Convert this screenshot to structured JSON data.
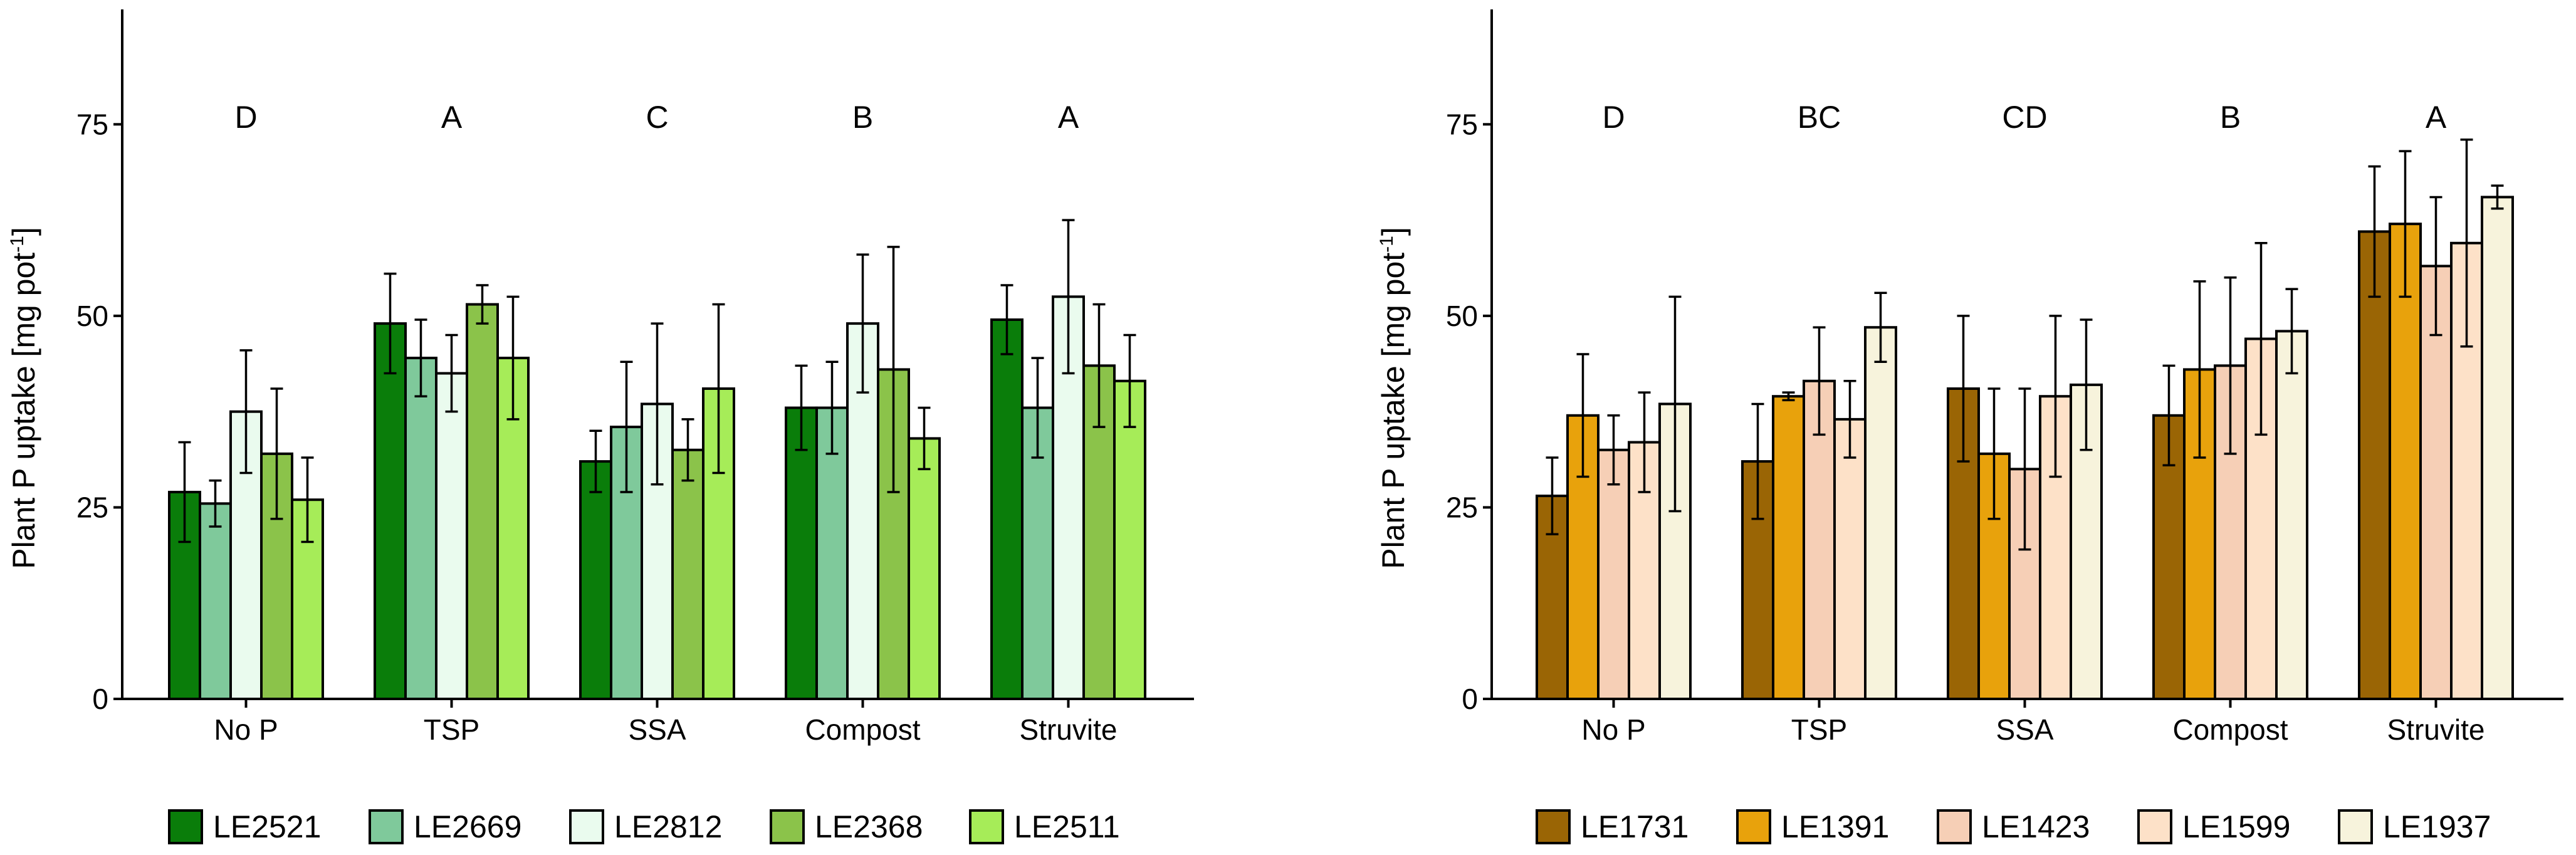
{
  "chart_data": [
    {
      "type": "bar",
      "title": "",
      "xlabel": "",
      "ylabel": "Plant P uptake [mg pot",
      "ylabel_sup": "-1",
      "ylabel_end": "]",
      "ylim": [
        0,
        90
      ],
      "yticks": [
        0,
        25,
        50,
        75
      ],
      "grid": false,
      "categories": [
        "No P",
        "TSP",
        "SSA",
        "Compost",
        "Struvite"
      ],
      "letters": [
        "D",
        "A",
        "C",
        "B",
        "A"
      ],
      "letter_y": 76,
      "legend_position": "bottom",
      "series": [
        {
          "name": "LE2521",
          "color": "#0a7d0a",
          "values": [
            27,
            49,
            31,
            38,
            49.5
          ],
          "errors": [
            6.5,
            6.5,
            4,
            5.5,
            4.5
          ]
        },
        {
          "name": "LE2669",
          "color": "#7fc99b",
          "values": [
            25.5,
            44.5,
            35.5,
            38,
            38
          ],
          "errors": [
            3,
            5,
            8.5,
            6,
            6.5
          ]
        },
        {
          "name": "LE2812",
          "color": "#eafbee",
          "values": [
            37.5,
            42.5,
            38.5,
            49,
            52.5
          ],
          "errors": [
            8,
            5,
            10.5,
            9,
            10
          ]
        },
        {
          "name": "LE2368",
          "color": "#8bc34a",
          "values": [
            32,
            51.5,
            32.5,
            43,
            43.5
          ],
          "errors": [
            8.5,
            2.5,
            4,
            16,
            8
          ]
        },
        {
          "name": "LE2511",
          "color": "#a6ec58",
          "values": [
            26,
            44.5,
            40.5,
            34,
            41.5
          ],
          "errors": [
            5.5,
            8,
            11,
            4,
            6
          ]
        }
      ]
    },
    {
      "type": "bar",
      "title": "",
      "xlabel": "",
      "ylabel": "Plant P uptake [mg pot",
      "ylabel_sup": "-1",
      "ylabel_end": "]",
      "ylim": [
        0,
        90
      ],
      "yticks": [
        0,
        25,
        50,
        75
      ],
      "grid": false,
      "categories": [
        "No P",
        "TSP",
        "SSA",
        "Compost",
        "Struvite"
      ],
      "letters": [
        "D",
        "BC",
        "CD",
        "B",
        "A"
      ],
      "letter_y": 76,
      "legend_position": "bottom",
      "series": [
        {
          "name": "LE1731",
          "color": "#9a6505",
          "values": [
            26.5,
            31,
            40.5,
            37,
            61
          ],
          "errors": [
            5,
            7.5,
            9.5,
            6.5,
            8.5
          ]
        },
        {
          "name": "LE1391",
          "color": "#e8a20c",
          "values": [
            37,
            39.5,
            32,
            43,
            62
          ],
          "errors": [
            8,
            0.5,
            8.5,
            11.5,
            9.5
          ]
        },
        {
          "name": "LE1423",
          "color": "#f6cfb6",
          "values": [
            32.5,
            41.5,
            30,
            43.5,
            56.5
          ],
          "errors": [
            4.5,
            7,
            10.5,
            11.5,
            9
          ]
        },
        {
          "name": "LE1599",
          "color": "#fde1c8",
          "values": [
            33.5,
            36.5,
            39.5,
            47,
            59.5
          ],
          "errors": [
            6.5,
            5,
            10.5,
            12.5,
            13.5
          ]
        },
        {
          "name": "LE1937",
          "color": "#f7f3dc",
          "values": [
            38.5,
            48.5,
            41,
            48,
            65.5
          ],
          "errors": [
            14,
            4.5,
            8.5,
            5.5,
            1.5
          ]
        }
      ]
    }
  ]
}
